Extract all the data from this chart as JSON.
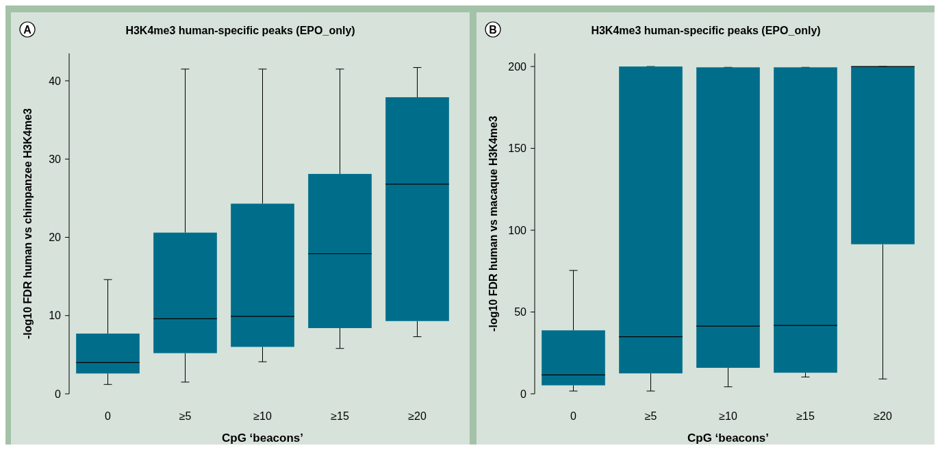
{
  "chart_data": [
    {
      "type": "box",
      "title": "H3K4me3 human-specific peaks (EPO_only)",
      "xlabel": "CpG ‘beacons’",
      "ylabel": "-log10 FDR human vs chimpanzee H3K4me3",
      "annotations": [
        "A"
      ],
      "categories": [
        "0",
        "≥5",
        "≥10",
        "≥15",
        "≥20"
      ],
      "color": "#006e8a",
      "ylim": [
        0,
        43.5
      ],
      "yticks": [
        0,
        10,
        20,
        30,
        40
      ],
      "boxes": [
        {
          "low": 1.2,
          "q1": 2.6,
          "median": 4.0,
          "q3": 7.7,
          "high": 14.6
        },
        {
          "low": 1.5,
          "q1": 5.2,
          "median": 9.6,
          "q3": 20.6,
          "high": 41.5
        },
        {
          "low": 4.1,
          "q1": 6.0,
          "median": 9.9,
          "q3": 24.3,
          "high": 41.5
        },
        {
          "low": 5.8,
          "q1": 8.4,
          "median": 17.9,
          "q3": 28.1,
          "high": 41.5
        },
        {
          "low": 7.3,
          "q1": 9.3,
          "median": 26.8,
          "q3": 37.9,
          "high": 41.7
        }
      ]
    },
    {
      "type": "box",
      "title": "H3K4me3 human-specific peaks (EPO_only)",
      "xlabel": "CpG ‘beacons’",
      "ylabel": "-log10 FDR human vs macaque H3K4me3",
      "annotations": [
        "B"
      ],
      "categories": [
        "0",
        "≥5",
        "≥10",
        "≥15",
        "≥20"
      ],
      "color": "#006e8a",
      "ylim": [
        0,
        208
      ],
      "yticks": [
        0,
        50,
        100,
        150,
        200
      ],
      "boxes": [
        {
          "low": 1.7,
          "q1": 5.2,
          "median": 11.6,
          "q3": 38.8,
          "high": 75.4
        },
        {
          "low": 1.7,
          "q1": 12.5,
          "median": 34.9,
          "q3": 200,
          "high": 200
        },
        {
          "low": 4.3,
          "q1": 15.9,
          "median": 41.4,
          "q3": 199.5,
          "high": 199.5
        },
        {
          "low": 10.3,
          "q1": 12.9,
          "median": 41.8,
          "q3": 199.5,
          "high": 199.5
        },
        {
          "low": 9.1,
          "q1": 91.4,
          "median": 200,
          "q3": 200,
          "high": 200
        }
      ]
    }
  ]
}
